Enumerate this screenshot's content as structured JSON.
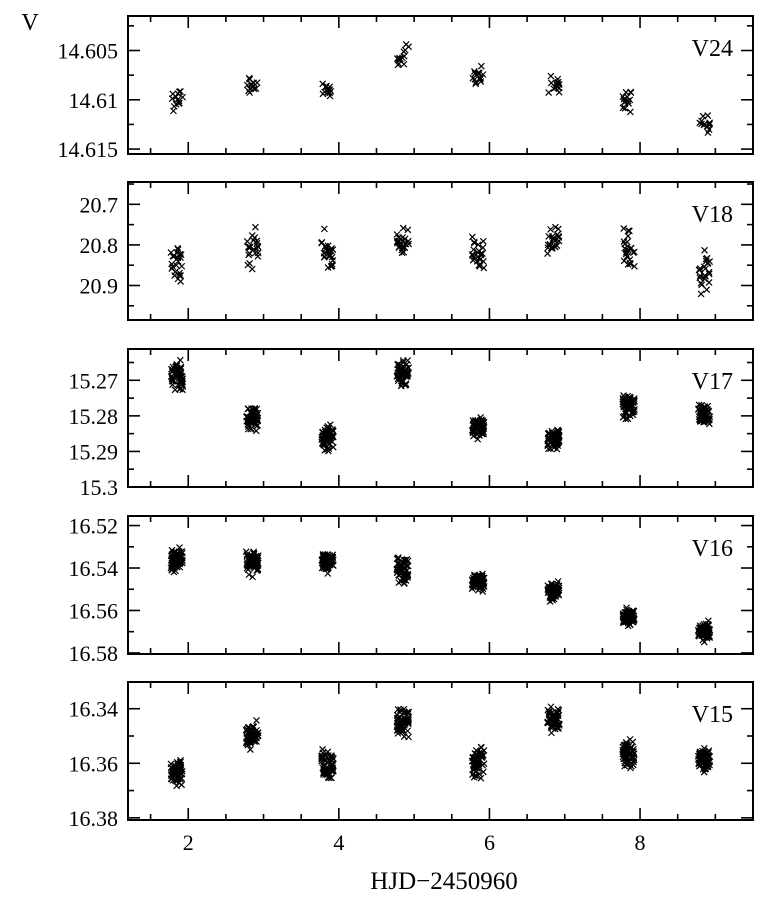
{
  "chart_data": {
    "type": "scatter",
    "xlabel": "HJD−2450960",
    "ylabel": "V",
    "xlim": [
      1.2,
      9.5
    ],
    "x_ticks": [
      "2",
      "4",
      "6",
      "8"
    ],
    "x_tick_values": [
      2,
      4,
      6,
      8
    ],
    "marker": "x",
    "y_axis_inverted": true,
    "nights": [
      1.85,
      2.85,
      3.85,
      4.85,
      5.85,
      6.85,
      7.85,
      8.85
    ],
    "panels": [
      {
        "name": "V24",
        "ylim": [
          14.6015,
          14.6155
        ],
        "y_ticks": [
          "14.605",
          "14.61",
          "14.615"
        ],
        "y_tick_values": [
          14.605,
          14.61,
          14.615
        ],
        "night_means": [
          14.6098,
          14.6085,
          14.609,
          14.6055,
          14.6075,
          14.6085,
          14.6102,
          14.6125
        ],
        "night_spread": [
          0.0012,
          0.0009,
          0.0005,
          0.0012,
          0.0008,
          0.0008,
          0.0009,
          0.0008
        ],
        "points_per_night": 14
      },
      {
        "name": "V18",
        "ylim": [
          20.645,
          20.985
        ],
        "y_ticks": [
          "20.7",
          "20.8",
          "20.9"
        ],
        "y_tick_values": [
          20.7,
          20.8,
          20.9
        ],
        "night_means": [
          20.85,
          20.8,
          20.82,
          20.8,
          20.82,
          20.79,
          20.81,
          20.87
        ],
        "night_spread": [
          0.045,
          0.045,
          0.045,
          0.03,
          0.035,
          0.035,
          0.05,
          0.04
        ],
        "points_per_night": 24
      },
      {
        "name": "V17",
        "ylim": [
          15.2612,
          15.3
        ],
        "y_ticks": [
          "15.27",
          "15.28",
          "15.29",
          "15.3"
        ],
        "y_tick_values": [
          15.27,
          15.28,
          15.29,
          15.3
        ],
        "night_means": [
          15.269,
          15.281,
          15.286,
          15.268,
          15.283,
          15.2862,
          15.277,
          15.2795
        ],
        "night_spread": [
          0.0035,
          0.0025,
          0.003,
          0.003,
          0.0025,
          0.0025,
          0.0035,
          0.0025
        ],
        "points_per_night": 60
      },
      {
        "name": "V16",
        "ylim": [
          16.5155,
          16.5805
        ],
        "y_ticks": [
          "16.52",
          "16.54",
          "16.56",
          "16.58"
        ],
        "y_tick_values": [
          16.52,
          16.54,
          16.56,
          16.58
        ],
        "night_means": [
          16.536,
          16.537,
          16.537,
          16.541,
          16.547,
          16.551,
          16.563,
          16.57
        ],
        "night_spread": [
          0.005,
          0.005,
          0.004,
          0.005,
          0.004,
          0.004,
          0.004,
          0.004
        ],
        "points_per_night": 60
      },
      {
        "name": "V15",
        "ylim": [
          16.3302,
          16.3808
        ],
        "y_ticks": [
          "16.34",
          "16.36",
          "16.38"
        ],
        "y_tick_values": [
          16.34,
          16.36,
          16.38
        ],
        "night_means": [
          16.363,
          16.35,
          16.361,
          16.345,
          16.359,
          16.344,
          16.357,
          16.359
        ],
        "night_spread": [
          0.004,
          0.004,
          0.005,
          0.004,
          0.005,
          0.004,
          0.004,
          0.004
        ],
        "points_per_night": 60
      }
    ]
  }
}
